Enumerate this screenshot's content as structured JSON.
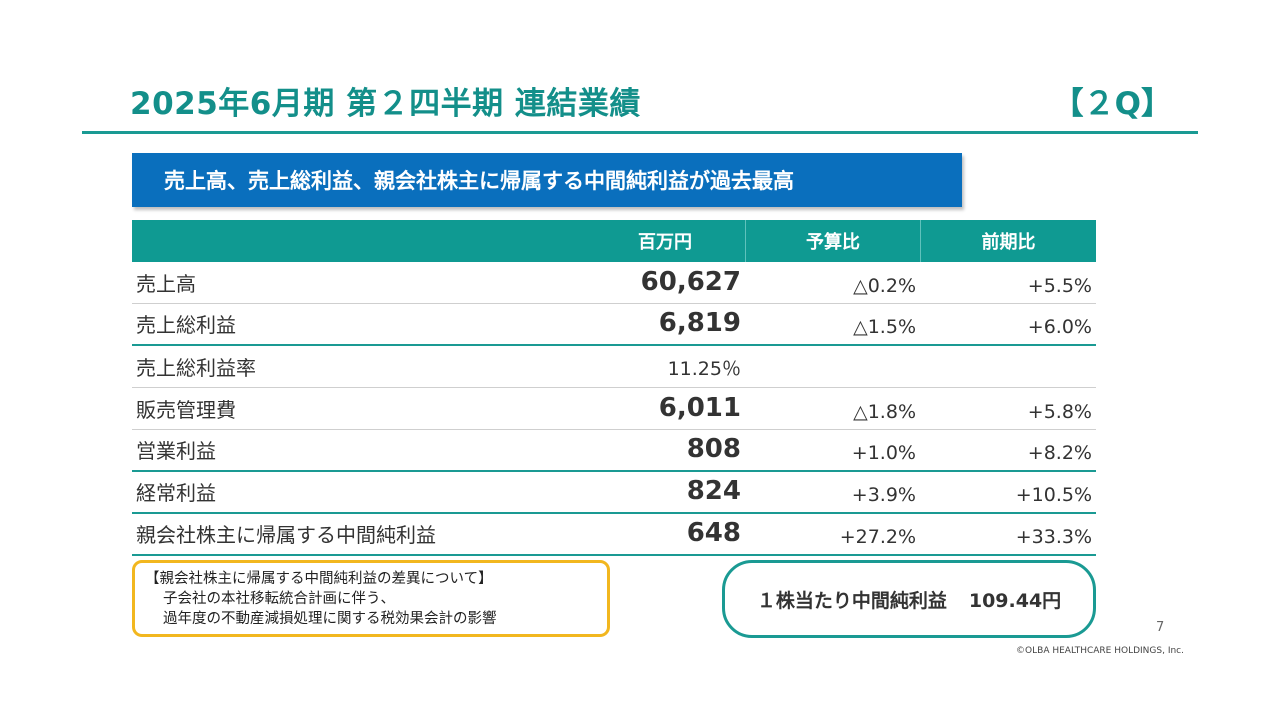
{
  "header": {
    "title": "2025年6月期 第２四半期 連結業績",
    "tag": "【２Q】"
  },
  "banner": "売上高、売上総利益、親会社株主に帰属する中間純利益が過去最高",
  "table": {
    "headers": [
      "",
      "百万円",
      "予算比",
      "前期比"
    ],
    "rows": [
      {
        "label": "売上高",
        "value": "60,627",
        "budget": "△0.2%",
        "prior": "+5.5%"
      },
      {
        "label": "売上総利益",
        "value": "6,819",
        "budget": "△1.5%",
        "prior": "+6.0%"
      },
      {
        "label": "売上総利益率",
        "value": "11.25％",
        "budget": "",
        "prior": ""
      },
      {
        "label": "販売管理費",
        "value": "6,011",
        "budget": "△1.8%",
        "prior": "+5.8%"
      },
      {
        "label": "営業利益",
        "value": "808",
        "budget": "+1.0%",
        "prior": "+8.2%"
      },
      {
        "label": "経常利益",
        "value": "824",
        "budget": "+3.9%",
        "prior": "+10.5%"
      },
      {
        "label": "親会社株主に帰属する中間純利益",
        "value": "648",
        "budget": "+27.2%",
        "prior": "+33.3%"
      }
    ]
  },
  "note": {
    "heading": "【親会社株主に帰属する中間純利益の差異について】",
    "line1": "子会社の本社移転統合計画に伴う、",
    "line2": "過年度の不動産減損処理に関する税効果会計の影響"
  },
  "eps": {
    "label": "１株当たり中間純利益",
    "value": "109.44円"
  },
  "footer": {
    "page": "7",
    "copyright": "©OLBA HEALTHCARE HOLDINGS, Inc."
  },
  "colors": {
    "accent": "#138f8a",
    "banner": "#0a6fbd",
    "note_border": "#f2b71f"
  }
}
